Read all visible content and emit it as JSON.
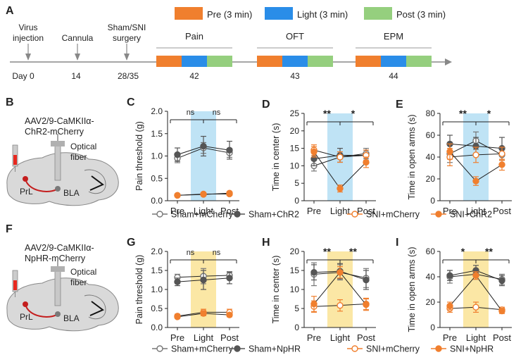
{
  "colors": {
    "pre": "#f07f2e",
    "light": "#2a8de8",
    "post": "#95cf7e",
    "blue_band": "#bfe3f5",
    "yellow_band": "#fbe7a5",
    "red": "#e8281f",
    "sham_m": "#888888",
    "sham_x": "#555555",
    "snim": "#f07f2e",
    "snix": "#f07f2e"
  },
  "timeline": {
    "panel_label": "A",
    "legend": [
      {
        "label": "Pre (3 min)",
        "color_key": "pre"
      },
      {
        "label": "Light (3 min)",
        "color_key": "light"
      },
      {
        "label": "Post (3 min)",
        "color_key": "post"
      }
    ],
    "events": [
      {
        "label_lines": [
          "Virus",
          "injection"
        ],
        "day": "Day 0"
      },
      {
        "label_lines": [
          "Cannula"
        ],
        "day": "14"
      },
      {
        "label_lines": [
          "Sham/SNI",
          "surgery"
        ],
        "day": "28/35"
      }
    ],
    "tests": [
      {
        "label": "Pain",
        "day": "42"
      },
      {
        "label": "OFT",
        "day": "43"
      },
      {
        "label": "EPM",
        "day": "44"
      }
    ]
  },
  "diagrams": [
    {
      "panel_label": "B",
      "virus_lines": [
        "AAV2/9-CaMKIIα-",
        "ChR2-mCherry"
      ],
      "fiber_lines": [
        "Optical",
        "fiber"
      ],
      "region1": "PrL",
      "region2": "BLA"
    },
    {
      "panel_label": "F",
      "virus_lines": [
        "AAV2/9-CaMKIIα-",
        "NpHR-mCherry"
      ],
      "fiber_lines": [
        "Optical",
        "fiber"
      ],
      "region1": "PrL",
      "region2": "BLA"
    }
  ],
  "legends": [
    {
      "items": [
        "Sham+mCherry",
        "Sham+ChR2",
        "SNI+mCherry",
        "SNI+ChR2"
      ]
    },
    {
      "items": [
        "Sham+mCherry",
        "Sham+NpHR",
        "SNI+mCherry",
        "SNI+NpHR"
      ]
    }
  ],
  "chart_data": [
    {
      "panel": "C",
      "type": "line",
      "band": "blue",
      "xlabel": "",
      "ylabel": "Pain threshold (g)",
      "categories": [
        "Pre",
        "Light",
        "Post"
      ],
      "ylim": [
        0,
        2.0
      ],
      "yticks": [
        "0.0",
        "0.5",
        "1.0",
        "1.5",
        "2.0"
      ],
      "ytick_values": [
        0,
        0.5,
        1.0,
        1.5,
        2.0
      ],
      "series": [
        {
          "name": "Sham+mCherry",
          "values": [
            0.95,
            1.18,
            1.07
          ],
          "err": [
            0.1,
            0.12,
            0.1
          ]
        },
        {
          "name": "Sham+ChR2",
          "values": [
            1.03,
            1.22,
            1.13
          ],
          "err": [
            0.15,
            0.22,
            0.2
          ]
        },
        {
          "name": "SNI+mCherry",
          "values": [
            0.12,
            0.15,
            0.15
          ],
          "err": [
            0.02,
            0.02,
            0.02
          ]
        },
        {
          "name": "SNI+ChR2",
          "values": [
            0.12,
            0.14,
            0.17
          ],
          "err": [
            0.02,
            0.02,
            0.03
          ]
        }
      ],
      "sig": [
        {
          "from": 0,
          "to": 1,
          "label": "ns"
        },
        {
          "from": 1,
          "to": 2,
          "label": "ns"
        }
      ]
    },
    {
      "panel": "D",
      "type": "line",
      "band": "blue",
      "xlabel": "",
      "ylabel": "Time in center (s)",
      "categories": [
        "Pre",
        "Light",
        "Post"
      ],
      "ylim": [
        0,
        25
      ],
      "yticks": [
        "0",
        "5",
        "10",
        "15",
        "20",
        "25"
      ],
      "ytick_values": [
        0,
        5,
        10,
        15,
        20,
        25
      ],
      "series": [
        {
          "name": "Sham+mCherry",
          "values": [
            10.0,
            12.5,
            13.5
          ],
          "err": [
            1.5,
            1.5,
            1.5
          ]
        },
        {
          "name": "Sham+ChR2",
          "values": [
            12.0,
            13.0,
            13.0
          ],
          "err": [
            2.0,
            2.0,
            1.5
          ]
        },
        {
          "name": "SNI+mCherry",
          "values": [
            14.5,
            12.5,
            13.0
          ],
          "err": [
            1.5,
            1.5,
            1.5
          ]
        },
        {
          "name": "SNI+ChR2",
          "values": [
            14.0,
            3.5,
            11.0
          ],
          "err": [
            1.5,
            1.0,
            1.5
          ]
        }
      ],
      "sig": [
        {
          "from": 0,
          "to": 1,
          "label": "**"
        },
        {
          "from": 1,
          "to": 2,
          "label": "*"
        }
      ]
    },
    {
      "panel": "E",
      "type": "line",
      "band": "blue",
      "xlabel": "",
      "ylabel": "Time in open arms (s)",
      "categories": [
        "Pre",
        "Light",
        "Post"
      ],
      "ylim": [
        0,
        80
      ],
      "yticks": [
        "0",
        "20",
        "40",
        "60",
        "80"
      ],
      "ytick_values": [
        0,
        20,
        40,
        60,
        80
      ],
      "series": [
        {
          "name": "Sham+mCherry",
          "values": [
            43,
            55,
            42
          ],
          "err": [
            8,
            8,
            5
          ]
        },
        {
          "name": "Sham+ChR2",
          "values": [
            52,
            50,
            48
          ],
          "err": [
            8,
            8,
            10
          ]
        },
        {
          "name": "SNI+mCherry",
          "values": [
            40,
            42,
            43
          ],
          "err": [
            8,
            7,
            6
          ]
        },
        {
          "name": "SNI+ChR2",
          "values": [
            45,
            18,
            33
          ],
          "err": [
            7,
            4,
            5
          ]
        }
      ],
      "sig": [
        {
          "from": 0,
          "to": 1,
          "label": "**"
        },
        {
          "from": 1,
          "to": 2,
          "label": "*"
        }
      ]
    },
    {
      "panel": "G",
      "type": "line",
      "band": "yellow",
      "xlabel": "",
      "ylabel": "Pain threshold (g)",
      "categories": [
        "Pre",
        "Light",
        "Post"
      ],
      "ylim": [
        0,
        2.0
      ],
      "yticks": [
        "0.0",
        "0.5",
        "1.0",
        "1.5",
        "2.0"
      ],
      "ytick_values": [
        0,
        0.5,
        1.0,
        1.5,
        2.0
      ],
      "series": [
        {
          "name": "Sham+mCherry",
          "values": [
            1.32,
            1.35,
            1.37
          ],
          "err": [
            0.08,
            0.2,
            0.1
          ]
        },
        {
          "name": "Sham+NpHR",
          "values": [
            1.2,
            1.25,
            1.3
          ],
          "err": [
            0.1,
            0.25,
            0.15
          ]
        },
        {
          "name": "SNI+mCherry",
          "values": [
            0.3,
            0.4,
            0.4
          ],
          "err": [
            0.05,
            0.08,
            0.08
          ]
        },
        {
          "name": "SNI+NpHR",
          "values": [
            0.28,
            0.37,
            0.33
          ],
          "err": [
            0.04,
            0.06,
            0.05
          ]
        }
      ],
      "sig": [
        {
          "from": 0,
          "to": 1,
          "label": "ns"
        },
        {
          "from": 1,
          "to": 2,
          "label": "ns"
        }
      ]
    },
    {
      "panel": "H",
      "type": "line",
      "band": "yellow",
      "xlabel": "",
      "ylabel": "Time in center (s)",
      "categories": [
        "Pre",
        "Light",
        "Post"
      ],
      "ylim": [
        0,
        20
      ],
      "yticks": [
        "0",
        "5",
        "10",
        "15",
        "20"
      ],
      "ytick_values": [
        0,
        5,
        10,
        15,
        20
      ],
      "series": [
        {
          "name": "Sham+mCherry",
          "values": [
            14.0,
            14.5,
            13.0
          ],
          "err": [
            3.0,
            2.0,
            2.5
          ]
        },
        {
          "name": "Sham+NpHR",
          "values": [
            14.5,
            14.8,
            12.5
          ],
          "err": [
            2.0,
            2.0,
            2.5
          ]
        },
        {
          "name": "SNI+mCherry",
          "values": [
            5.5,
            5.8,
            6.2
          ],
          "err": [
            1.5,
            1.5,
            1.5
          ]
        },
        {
          "name": "SNI+NpHR",
          "values": [
            6.2,
            14.5,
            6.0
          ],
          "err": [
            2.0,
            1.5,
            1.5
          ]
        }
      ],
      "sig": [
        {
          "from": 0,
          "to": 1,
          "label": "**"
        },
        {
          "from": 1,
          "to": 2,
          "label": "**"
        }
      ]
    },
    {
      "panel": "I",
      "type": "line",
      "band": "yellow",
      "xlabel": "",
      "ylabel": "Time in open arms (s)",
      "categories": [
        "Pre",
        "Light",
        "Post"
      ],
      "ylim": [
        0,
        60
      ],
      "yticks": [
        "0",
        "20",
        "40",
        "60"
      ],
      "ytick_values": [
        0,
        20,
        40,
        60
      ],
      "series": [
        {
          "name": "Sham+mCherry",
          "values": [
            40,
            42,
            38
          ],
          "err": [
            5,
            4,
            4
          ]
        },
        {
          "name": "Sham+NpHR",
          "values": [
            41,
            45,
            37
          ],
          "err": [
            4,
            4,
            4
          ]
        },
        {
          "name": "SNI+mCherry",
          "values": [
            15,
            16,
            14
          ],
          "err": [
            3,
            4,
            2
          ]
        },
        {
          "name": "SNI+NpHR",
          "values": [
            17,
            41,
            13
          ],
          "err": [
            3,
            3,
            2
          ]
        }
      ],
      "sig": [
        {
          "from": 0,
          "to": 1,
          "label": "*"
        },
        {
          "from": 1,
          "to": 2,
          "label": "**"
        }
      ]
    }
  ]
}
